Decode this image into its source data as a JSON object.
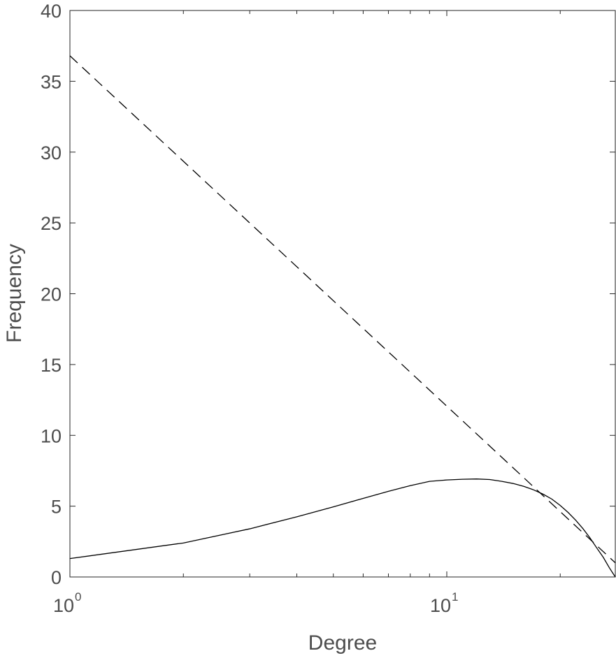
{
  "chart_data": {
    "type": "line",
    "title": "",
    "xlabel": "Degree",
    "ylabel": "Frequency",
    "xscale": "log",
    "xlim": [
      1,
      28
    ],
    "ylim": [
      0,
      40
    ],
    "grid": false,
    "x_ticks": [
      {
        "value": 1,
        "base": "10",
        "exp": "0"
      },
      {
        "value": 10,
        "base": "10",
        "exp": "1"
      }
    ],
    "y_ticks": [
      "0",
      "5",
      "10",
      "15",
      "20",
      "25",
      "30",
      "35",
      "40"
    ],
    "series": [
      {
        "style": "solid",
        "color": "#000000",
        "x": [
          1,
          2,
          3,
          4,
          5,
          6,
          7,
          8,
          9,
          10,
          11,
          12,
          13,
          14,
          15,
          16,
          17,
          18,
          19,
          20,
          21,
          22,
          23,
          24,
          25,
          26,
          27,
          28
        ],
        "y": [
          1.3,
          2.4,
          3.4,
          4.25,
          4.95,
          5.55,
          6.05,
          6.45,
          6.75,
          6.85,
          6.9,
          6.92,
          6.88,
          6.75,
          6.6,
          6.4,
          6.15,
          5.85,
          5.5,
          5.05,
          4.55,
          4.0,
          3.4,
          2.75,
          2.05,
          1.4,
          0.65,
          0.0
        ]
      },
      {
        "style": "dashed",
        "color": "#000000",
        "x": [
          1,
          28
        ],
        "y": [
          36.8,
          1.0
        ]
      }
    ]
  }
}
